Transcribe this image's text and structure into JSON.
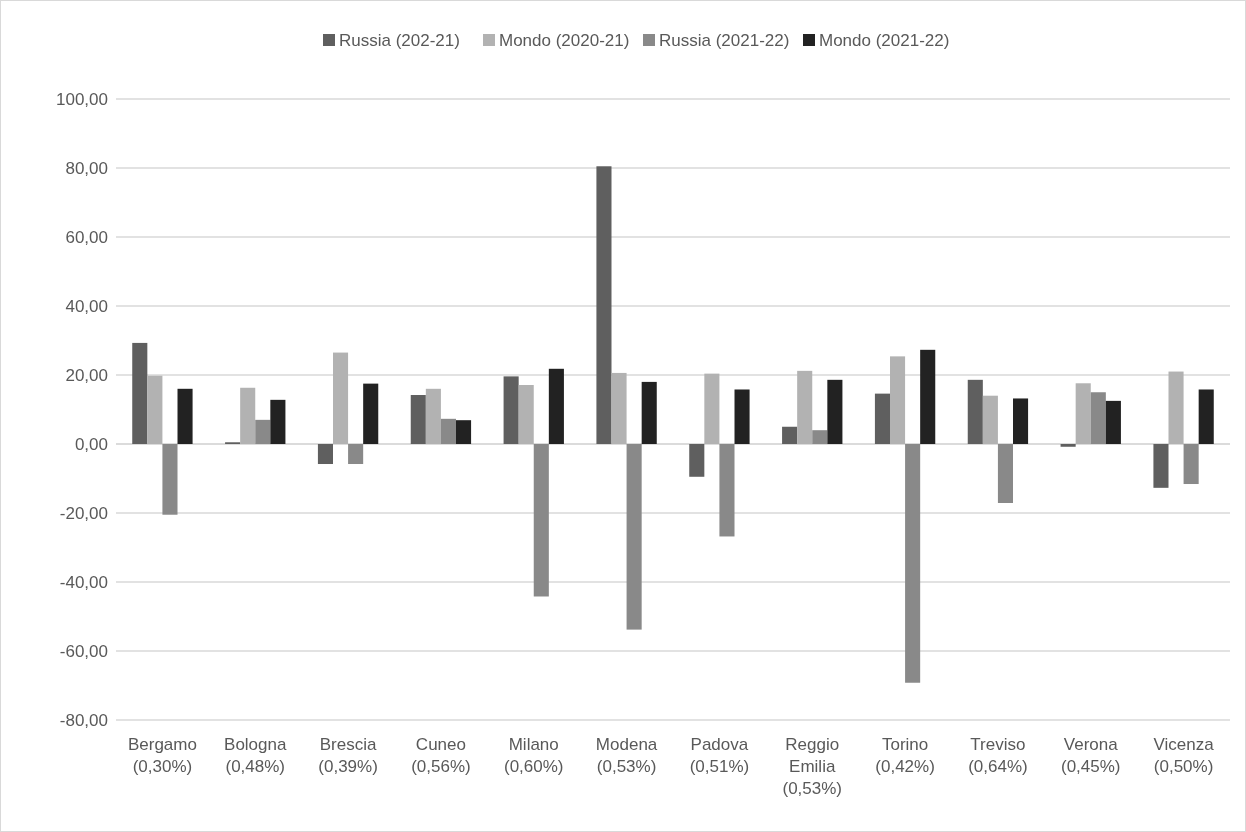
{
  "chart_data": {
    "type": "bar",
    "categories": [
      "Bergamo (0,30%)",
      "Bologna (0,48%)",
      "Brescia (0,39%)",
      "Cuneo (0,56%)",
      "Milano (0,60%)",
      "Modena (0,53%)",
      "Padova (0,51%)",
      "Reggio Emilia (0,53%)",
      "Torino (0,42%)",
      "Treviso (0,64%)",
      "Verona (0,45%)",
      "Vicenza (0,50%)"
    ],
    "series": [
      {
        "name": "Russia (202-21)",
        "color": "#5f5f5f",
        "values": [
          29.3,
          0.5,
          -5.8,
          14.2,
          19.6,
          80.5,
          -9.5,
          5.0,
          14.6,
          18.6,
          -0.8,
          -12.7
        ]
      },
      {
        "name": "Mondo (2020-21)",
        "color": "#b2b2b2",
        "values": [
          19.8,
          16.3,
          26.5,
          16.0,
          17.1,
          20.6,
          20.4,
          21.2,
          25.4,
          14.0,
          17.6,
          21.0
        ]
      },
      {
        "name": "Russia (2021-22)",
        "color": "#898989",
        "values": [
          -20.5,
          7.0,
          -5.8,
          7.3,
          -44.2,
          -53.8,
          -26.8,
          4.0,
          -69.2,
          -17.1,
          15.0,
          -11.6
        ]
      },
      {
        "name": "Mondo (2021-22)",
        "color": "#222222",
        "values": [
          16.0,
          12.8,
          17.5,
          6.9,
          21.8,
          18.0,
          15.8,
          18.6,
          27.3,
          13.2,
          12.5,
          15.8
        ]
      }
    ],
    "ylim": [
      -80,
      100
    ],
    "yticks": [
      {
        "value": -80,
        "label": "-80,00"
      },
      {
        "value": -60,
        "label": "-60,00"
      },
      {
        "value": -40,
        "label": "-40,00"
      },
      {
        "value": -20,
        "label": "-20,00"
      },
      {
        "value": 0,
        "label": "0,00"
      },
      {
        "value": 20,
        "label": "20,00"
      },
      {
        "value": 40,
        "label": "40,00"
      },
      {
        "value": 60,
        "label": "60,00"
      },
      {
        "value": 80,
        "label": "80,00"
      },
      {
        "value": 100,
        "label": "100,00"
      }
    ],
    "grid": "y",
    "legend": "top"
  }
}
